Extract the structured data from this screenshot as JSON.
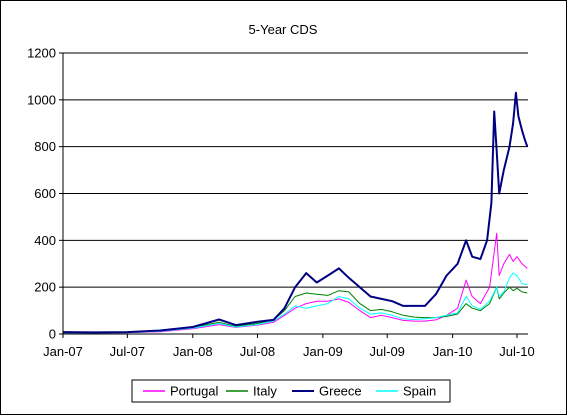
{
  "chart_data": {
    "type": "line",
    "title": "5-Year CDS",
    "xlabel": "",
    "ylabel": "",
    "ylim": [
      0,
      1200
    ],
    "yticks": [
      0,
      200,
      400,
      600,
      800,
      1000,
      1200
    ],
    "xlim": [
      "2007-01-01",
      "2010-08-01"
    ],
    "xticks": [
      {
        "date": "2007-01-01",
        "label": "Jan-07"
      },
      {
        "date": "2007-07-01",
        "label": "Jul-07"
      },
      {
        "date": "2008-01-01",
        "label": "Jan-08"
      },
      {
        "date": "2008-07-01",
        "label": "Jul-08"
      },
      {
        "date": "2009-01-01",
        "label": "Jan-09"
      },
      {
        "date": "2009-07-01",
        "label": "Jul-09"
      },
      {
        "date": "2010-01-01",
        "label": "Jan-10"
      },
      {
        "date": "2010-07-01",
        "label": "Jul-10"
      }
    ],
    "grid": {
      "y": true,
      "x": false
    },
    "legend_position": "bottom",
    "series": [
      {
        "name": "Portugal",
        "color": "#ff00ff",
        "points": [
          [
            "2007-01-01",
            5
          ],
          [
            "2007-04-01",
            5
          ],
          [
            "2007-07-01",
            6
          ],
          [
            "2007-10-01",
            10
          ],
          [
            "2008-01-01",
            22
          ],
          [
            "2008-03-15",
            40
          ],
          [
            "2008-05-01",
            28
          ],
          [
            "2008-07-01",
            38
          ],
          [
            "2008-08-15",
            50
          ],
          [
            "2008-09-15",
            80
          ],
          [
            "2008-10-15",
            110
          ],
          [
            "2008-11-15",
            130
          ],
          [
            "2008-12-15",
            140
          ],
          [
            "2009-01-15",
            140
          ],
          [
            "2009-02-15",
            150
          ],
          [
            "2009-03-15",
            135
          ],
          [
            "2009-04-15",
            100
          ],
          [
            "2009-05-15",
            70
          ],
          [
            "2009-06-15",
            80
          ],
          [
            "2009-07-15",
            70
          ],
          [
            "2009-08-15",
            58
          ],
          [
            "2009-09-15",
            55
          ],
          [
            "2009-10-15",
            55
          ],
          [
            "2009-11-15",
            60
          ],
          [
            "2009-12-15",
            80
          ],
          [
            "2010-01-15",
            110
          ],
          [
            "2010-02-08",
            230
          ],
          [
            "2010-02-25",
            160
          ],
          [
            "2010-03-20",
            130
          ],
          [
            "2010-04-15",
            200
          ],
          [
            "2010-05-05",
            430
          ],
          [
            "2010-05-12",
            250
          ],
          [
            "2010-05-25",
            300
          ],
          [
            "2010-06-10",
            340
          ],
          [
            "2010-06-20",
            310
          ],
          [
            "2010-07-01",
            330
          ],
          [
            "2010-07-15",
            300
          ],
          [
            "2010-07-30",
            280
          ]
        ]
      },
      {
        "name": "Italy",
        "color": "#008000",
        "points": [
          [
            "2007-01-01",
            6
          ],
          [
            "2007-04-01",
            6
          ],
          [
            "2007-07-01",
            8
          ],
          [
            "2007-10-01",
            14
          ],
          [
            "2008-01-01",
            28
          ],
          [
            "2008-03-15",
            50
          ],
          [
            "2008-05-01",
            33
          ],
          [
            "2008-07-01",
            45
          ],
          [
            "2008-08-15",
            60
          ],
          [
            "2008-09-15",
            100
          ],
          [
            "2008-10-15",
            160
          ],
          [
            "2008-11-15",
            175
          ],
          [
            "2008-12-15",
            170
          ],
          [
            "2009-01-15",
            165
          ],
          [
            "2009-02-15",
            185
          ],
          [
            "2009-03-15",
            180
          ],
          [
            "2009-04-15",
            130
          ],
          [
            "2009-05-15",
            100
          ],
          [
            "2009-06-15",
            105
          ],
          [
            "2009-07-15",
            95
          ],
          [
            "2009-08-15",
            80
          ],
          [
            "2009-09-15",
            72
          ],
          [
            "2009-10-15",
            70
          ],
          [
            "2009-11-15",
            70
          ],
          [
            "2009-12-15",
            75
          ],
          [
            "2010-01-15",
            85
          ],
          [
            "2010-02-08",
            130
          ],
          [
            "2010-02-25",
            110
          ],
          [
            "2010-03-20",
            100
          ],
          [
            "2010-04-15",
            130
          ],
          [
            "2010-05-05",
            200
          ],
          [
            "2010-05-12",
            150
          ],
          [
            "2010-05-25",
            175
          ],
          [
            "2010-06-10",
            200
          ],
          [
            "2010-06-20",
            185
          ],
          [
            "2010-07-01",
            195
          ],
          [
            "2010-07-15",
            180
          ],
          [
            "2010-07-30",
            175
          ]
        ]
      },
      {
        "name": "Greece",
        "color": "#000080",
        "points": [
          [
            "2007-01-01",
            8
          ],
          [
            "2007-04-01",
            7
          ],
          [
            "2007-07-01",
            8
          ],
          [
            "2007-10-01",
            15
          ],
          [
            "2008-01-01",
            30
          ],
          [
            "2008-03-15",
            62
          ],
          [
            "2008-05-01",
            38
          ],
          [
            "2008-07-01",
            52
          ],
          [
            "2008-08-15",
            60
          ],
          [
            "2008-09-15",
            110
          ],
          [
            "2008-10-15",
            200
          ],
          [
            "2008-11-15",
            260
          ],
          [
            "2008-12-15",
            220
          ],
          [
            "2009-01-15",
            250
          ],
          [
            "2009-02-15",
            280
          ],
          [
            "2009-03-15",
            240
          ],
          [
            "2009-04-15",
            200
          ],
          [
            "2009-05-15",
            160
          ],
          [
            "2009-06-15",
            150
          ],
          [
            "2009-07-15",
            140
          ],
          [
            "2009-08-15",
            120
          ],
          [
            "2009-09-15",
            120
          ],
          [
            "2009-10-15",
            120
          ],
          [
            "2009-11-15",
            170
          ],
          [
            "2009-12-15",
            250
          ],
          [
            "2010-01-15",
            300
          ],
          [
            "2010-02-08",
            400
          ],
          [
            "2010-02-25",
            330
          ],
          [
            "2010-03-20",
            320
          ],
          [
            "2010-04-08",
            400
          ],
          [
            "2010-04-20",
            560
          ],
          [
            "2010-04-28",
            950
          ],
          [
            "2010-05-05",
            780
          ],
          [
            "2010-05-12",
            600
          ],
          [
            "2010-05-25",
            700
          ],
          [
            "2010-06-10",
            800
          ],
          [
            "2010-06-20",
            900
          ],
          [
            "2010-06-28",
            1030
          ],
          [
            "2010-07-05",
            930
          ],
          [
            "2010-07-15",
            870
          ],
          [
            "2010-07-23",
            830
          ],
          [
            "2010-07-30",
            800
          ]
        ]
      },
      {
        "name": "Spain",
        "color": "#00ffff",
        "points": [
          [
            "2007-01-01",
            5
          ],
          [
            "2007-04-01",
            5
          ],
          [
            "2007-07-01",
            6
          ],
          [
            "2007-10-01",
            12
          ],
          [
            "2008-01-01",
            25
          ],
          [
            "2008-03-15",
            45
          ],
          [
            "2008-05-01",
            30
          ],
          [
            "2008-07-01",
            40
          ],
          [
            "2008-08-15",
            55
          ],
          [
            "2008-09-15",
            85
          ],
          [
            "2008-10-15",
            120
          ],
          [
            "2008-11-15",
            110
          ],
          [
            "2008-12-15",
            120
          ],
          [
            "2009-01-15",
            130
          ],
          [
            "2009-02-15",
            160
          ],
          [
            "2009-03-15",
            150
          ],
          [
            "2009-04-15",
            110
          ],
          [
            "2009-05-15",
            85
          ],
          [
            "2009-06-15",
            90
          ],
          [
            "2009-07-15",
            80
          ],
          [
            "2009-08-15",
            65
          ],
          [
            "2009-09-15",
            62
          ],
          [
            "2009-10-15",
            65
          ],
          [
            "2009-11-15",
            70
          ],
          [
            "2009-12-15",
            80
          ],
          [
            "2010-01-15",
            90
          ],
          [
            "2010-02-08",
            160
          ],
          [
            "2010-02-25",
            120
          ],
          [
            "2010-03-20",
            105
          ],
          [
            "2010-04-15",
            140
          ],
          [
            "2010-05-05",
            200
          ],
          [
            "2010-05-12",
            160
          ],
          [
            "2010-05-25",
            180
          ],
          [
            "2010-06-10",
            240
          ],
          [
            "2010-06-20",
            260
          ],
          [
            "2010-07-01",
            250
          ],
          [
            "2010-07-15",
            215
          ],
          [
            "2010-07-30",
            210
          ]
        ]
      }
    ]
  }
}
